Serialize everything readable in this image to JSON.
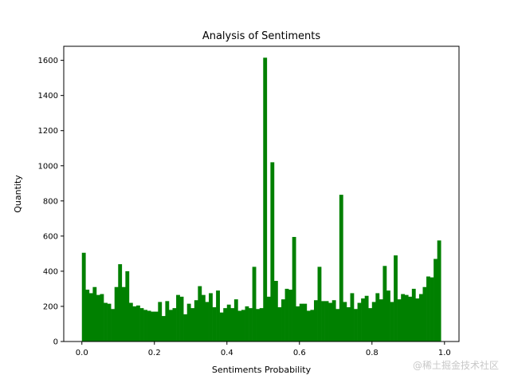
{
  "chart_data": {
    "type": "bar",
    "title": "Analysis of Sentiments",
    "xlabel": "Sentiments Probability",
    "ylabel": "Quantity",
    "xlim": [
      -0.05,
      1.04
    ],
    "ylim": [
      0,
      1680
    ],
    "x_ticks": [
      0.0,
      0.2,
      0.4,
      0.6,
      0.8,
      1.0
    ],
    "x_tick_labels": [
      "0.0",
      "0.2",
      "0.4",
      "0.6",
      "0.8",
      "1.0"
    ],
    "y_ticks": [
      0,
      200,
      400,
      600,
      800,
      1000,
      1200,
      1400,
      1600
    ],
    "y_tick_labels": [
      "0",
      "200",
      "400",
      "600",
      "800",
      "1000",
      "1200",
      "1400",
      "1600"
    ],
    "bar_color": "#008000",
    "grid": false,
    "bin_start": 0.0,
    "bin_width": 0.01,
    "values": [
      505,
      295,
      275,
      310,
      265,
      270,
      220,
      215,
      185,
      310,
      440,
      310,
      400,
      220,
      200,
      205,
      190,
      180,
      175,
      170,
      170,
      225,
      145,
      230,
      180,
      190,
      265,
      255,
      155,
      215,
      190,
      235,
      315,
      265,
      225,
      275,
      195,
      290,
      165,
      190,
      210,
      190,
      240,
      175,
      180,
      200,
      190,
      425,
      185,
      190,
      1615,
      255,
      1020,
      345,
      195,
      240,
      300,
      295,
      595,
      200,
      215,
      215,
      175,
      180,
      235,
      425,
      230,
      230,
      220,
      235,
      185,
      835,
      225,
      195,
      275,
      185,
      220,
      245,
      260,
      190,
      225,
      275,
      240,
      430,
      290,
      225,
      490,
      240,
      270,
      265,
      255,
      300,
      245,
      270,
      310,
      370,
      365,
      470,
      575
    ]
  },
  "watermark": "@稀土掘金技术社区"
}
